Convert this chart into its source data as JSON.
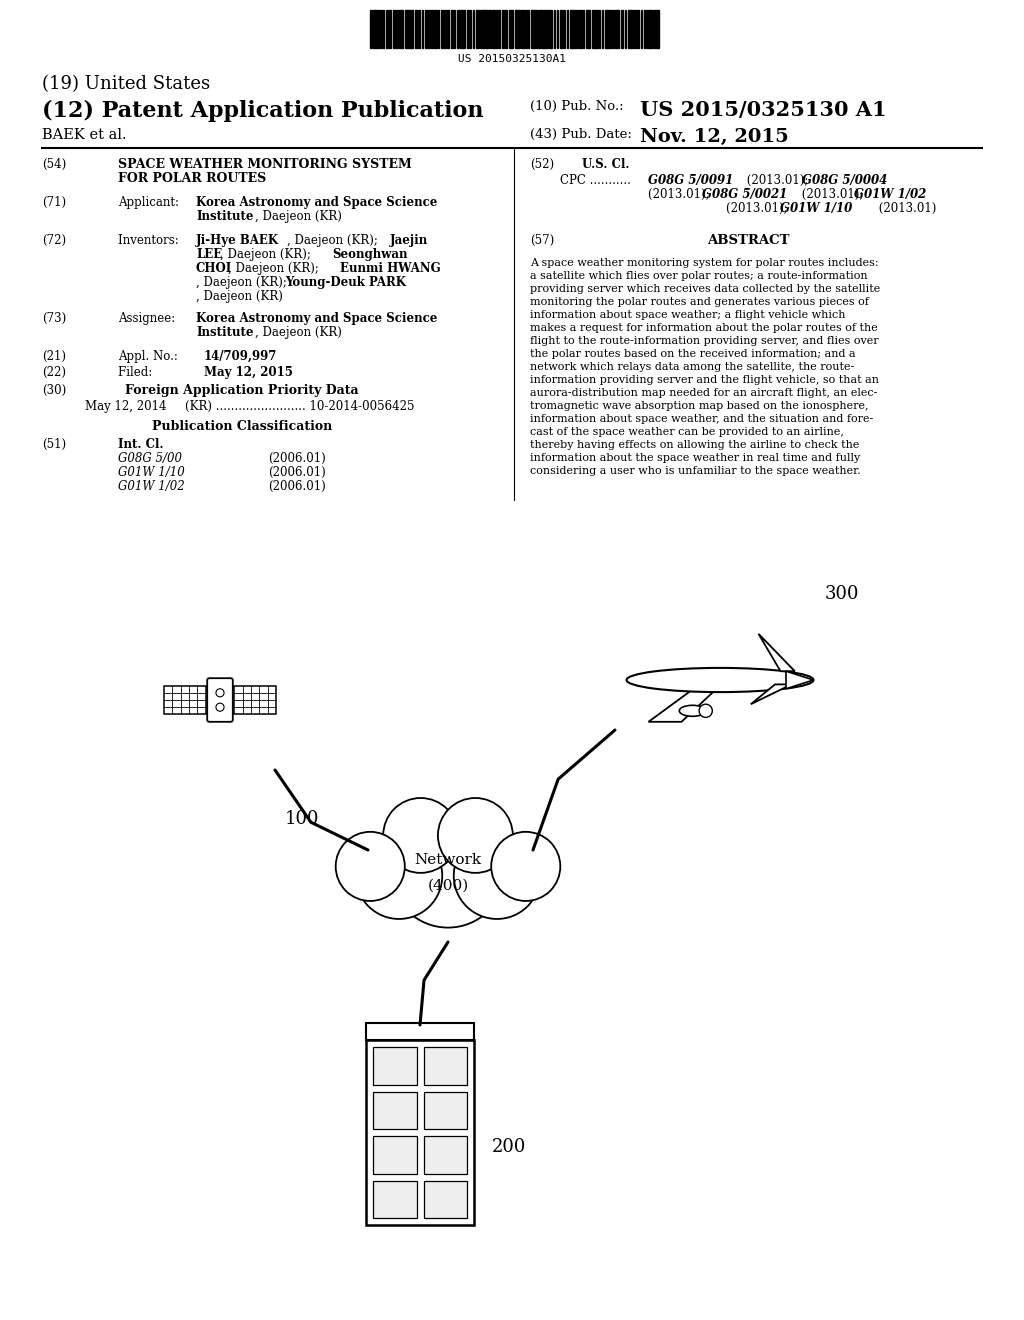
{
  "background_color": "#ffffff",
  "barcode_text": "US 20150325130A1",
  "title_19": "(19) United States",
  "title_12": "(12) Patent Application Publication",
  "pub_no_label": "(10) Pub. No.:",
  "pub_no_value": "US 2015/0325130 A1",
  "author": "BAEK et al.",
  "pub_date_label": "(43) Pub. Date:",
  "pub_date_value": "Nov. 12, 2015",
  "field57_title": "ABSTRACT",
  "abstract_text": "A space weather monitoring system for polar routes includes:\na satellite which flies over polar routes; a route-information\nproviding server which receives data collected by the satellite\nmonitoring the polar routes and generates various pieces of\ninformation about space weather; a flight vehicle which\nmakes a request for information about the polar routes of the\nflight to the route-information providing server, and flies over\nthe polar routes based on the received information; and a\nnetwork which relays data among the satellite, the route-\ninformation providing server and the flight vehicle, so that an\naurora-distribution map needed for an aircraft flight, an elec-\ntromagnetic wave absorption map based on the ionosphere,\ninformation about space weather, and the situation and fore-\ncast of the space weather can be provided to an airline,\nthereby having effects on allowing the airline to check the\ninformation about the space weather in real time and fully\nconsidering a user who is unfamiliar to the space weather.",
  "diagram_label_100": "100",
  "diagram_label_200": "200",
  "diagram_label_300": "300"
}
